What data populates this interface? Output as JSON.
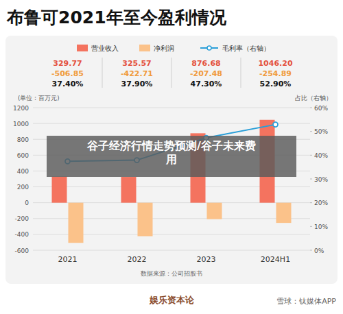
{
  "chart_data": {
    "type": "bar",
    "title": "布鲁可2021年至今盈利情况",
    "y_label": "(单位：百万元)",
    "y2_label": "占比（右轴）",
    "categories": [
      "2021",
      "2022",
      "2023",
      "2024H1"
    ],
    "series": [
      {
        "name": "营业收入",
        "color": "#f4735f",
        "values": [
          329.77,
          325.57,
          876.68,
          1046.2
        ],
        "value_labels": [
          "329.77",
          "325.57",
          "876.68",
          "1046.20"
        ]
      },
      {
        "name": "净利润",
        "color": "#fbc28a",
        "values": [
          -506.85,
          -422.71,
          -207.48,
          -254.89
        ],
        "value_labels": [
          "-506.85",
          "-422.71",
          "-207.48",
          "-254.89"
        ]
      },
      {
        "name": "毛利率（右轴）",
        "type": "line",
        "axis": "y2",
        "color": "#2a9fd8",
        "marker": "circle",
        "values": [
          37.4,
          37.9,
          47.3,
          52.9
        ],
        "value_labels": [
          "37.40%",
          "37.90%",
          "47.30%",
          "52.90%"
        ]
      }
    ],
    "ylim": [
      -600,
      1200
    ],
    "yticks": [
      -600,
      -400,
      -200,
      0,
      200,
      400,
      600,
      800,
      1000,
      1200
    ],
    "y2lim": [
      0,
      60
    ],
    "y2ticks": [
      {
        "value": 0,
        "label": "0%"
      },
      {
        "value": 10,
        "label": "10%"
      },
      {
        "value": 20,
        "label": "20%"
      },
      {
        "value": 30,
        "label": "30%"
      },
      {
        "value": 40,
        "label": "40%"
      },
      {
        "value": 50,
        "label": "50%"
      },
      {
        "value": 60,
        "label": "60%"
      }
    ],
    "grid": true,
    "legend": "top",
    "annotations": [
      "谷子经济行情走势预测/谷子未来费用"
    ],
    "source": "数据来源：公司招股书",
    "footer": [
      "娱乐资本论",
      "雪球：钛媒体APP"
    ]
  }
}
